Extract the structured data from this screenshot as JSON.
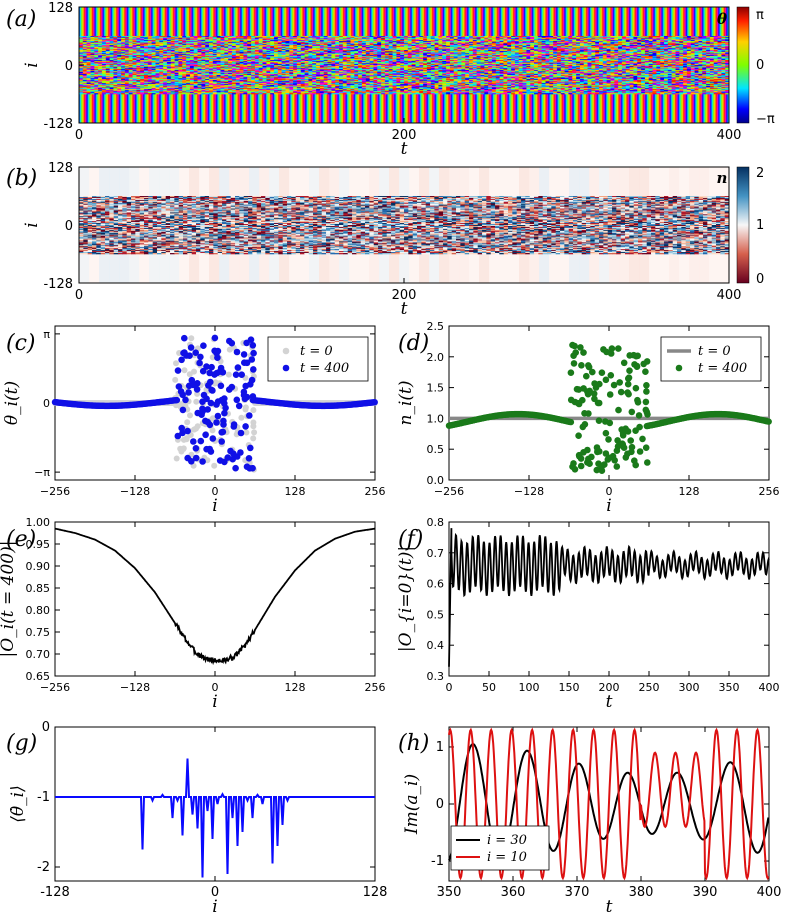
{
  "chart_data": [
    {
      "panel": "(a)",
      "type": "heatmap",
      "title": "",
      "xlabel": "t",
      "ylabel": "i",
      "x_ticks": [
        "0",
        "200",
        "400"
      ],
      "y_ticks": [
        "128",
        "0",
        "-128"
      ],
      "xlim": [
        0,
        400
      ],
      "ylim": [
        -128,
        128
      ],
      "colorbar": {
        "label": "θ",
        "ticks": [
          "π",
          "0",
          "−π"
        ],
        "range": [
          -3.1416,
          3.1416
        ]
      }
    },
    {
      "panel": "(b)",
      "type": "heatmap",
      "title": "",
      "xlabel": "t",
      "ylabel": "i",
      "x_ticks": [
        "0",
        "200",
        "400"
      ],
      "y_ticks": [
        "128",
        "0",
        "-128"
      ],
      "xlim": [
        0,
        400
      ],
      "ylim": [
        -128,
        128
      ],
      "colorbar": {
        "label": "n",
        "ticks": [
          "2",
          "1",
          "0"
        ],
        "range": [
          0,
          2
        ]
      }
    },
    {
      "panel": "(c)",
      "type": "scatter",
      "xlabel": "i",
      "ylabel": "θ_i(t)",
      "x_ticks": [
        "−256",
        "−128",
        "0",
        "128",
        "256"
      ],
      "y_ticks": [
        "π",
        "0",
        "−π"
      ],
      "xlim": [
        -256,
        256
      ],
      "ylim": [
        -3.5,
        3.5
      ],
      "legend": [
        {
          "label": "t = 0",
          "color": "#d3d3d3"
        },
        {
          "label": "t = 400",
          "color": "#1010e6"
        }
      ],
      "legend_position": "top-right"
    },
    {
      "panel": "(d)",
      "type": "scatter",
      "xlabel": "i",
      "ylabel": "n_i(t)",
      "x_ticks": [
        "−256",
        "−128",
        "0",
        "128",
        "256"
      ],
      "y_ticks": [
        "0.0",
        "0.5",
        "1.0",
        "1.5",
        "2.0",
        "2.5"
      ],
      "xlim": [
        -256,
        256
      ],
      "ylim": [
        0,
        2.5
      ],
      "legend": [
        {
          "label": "t = 0",
          "color": "#888888"
        },
        {
          "label": "t = 400",
          "color": "#1a7a1a"
        }
      ],
      "legend_position": "top-right"
    },
    {
      "panel": "(e)",
      "type": "line",
      "xlabel": "i",
      "ylabel": "|O_i(t = 400)|",
      "x_ticks": [
        "−256",
        "−128",
        "0",
        "128",
        "256"
      ],
      "y_ticks": [
        "0.65",
        "0.70",
        "0.75",
        "0.80",
        "0.85",
        "0.90",
        "0.95",
        "1.00"
      ],
      "xlim": [
        -256,
        256
      ],
      "ylim": [
        0.65,
        1.0
      ],
      "x": [
        -256,
        -224,
        -192,
        -160,
        -128,
        -96,
        -64,
        -48,
        -32,
        -16,
        0,
        16,
        32,
        48,
        64,
        96,
        128,
        160,
        192,
        224,
        256
      ],
      "y": [
        0.985,
        0.975,
        0.96,
        0.935,
        0.895,
        0.84,
        0.77,
        0.735,
        0.705,
        0.69,
        0.685,
        0.685,
        0.695,
        0.72,
        0.755,
        0.83,
        0.89,
        0.935,
        0.962,
        0.978,
        0.985
      ]
    },
    {
      "panel": "(f)",
      "type": "line",
      "xlabel": "t",
      "ylabel": "|O_{i=0}(t)|",
      "x_ticks": [
        "0",
        "50",
        "100",
        "150",
        "200",
        "250",
        "300",
        "350",
        "400"
      ],
      "y_ticks": [
        "0.3",
        "0.4",
        "0.5",
        "0.6",
        "0.7",
        "0.8"
      ],
      "xlim": [
        0,
        400
      ],
      "ylim": [
        0.3,
        0.8
      ],
      "mean_level": 0.66,
      "initial_value": 0.33,
      "peak_value": 0.78
    },
    {
      "panel": "(g)",
      "type": "line",
      "xlabel": "i",
      "ylabel": "⟨θ̇_i⟩",
      "x_ticks": [
        "-128",
        "0",
        "128"
      ],
      "y_ticks": [
        "0",
        "-1",
        "-2"
      ],
      "xlim": [
        -128,
        128
      ],
      "ylim": [
        -2.2,
        0
      ],
      "baseline": -1,
      "spikes": [
        {
          "i": -58,
          "v": -1.75
        },
        {
          "i": -50,
          "v": -1.05
        },
        {
          "i": -42,
          "v": -0.97
        },
        {
          "i": -34,
          "v": -1.3
        },
        {
          "i": -30,
          "v": -1.05
        },
        {
          "i": -26,
          "v": -1.55
        },
        {
          "i": -22,
          "v": -0.45
        },
        {
          "i": -18,
          "v": -1.25
        },
        {
          "i": -14,
          "v": -1.45
        },
        {
          "i": -10,
          "v": -2.15
        },
        {
          "i": -6,
          "v": -1.2
        },
        {
          "i": -2,
          "v": -1.6
        },
        {
          "i": 2,
          "v": -1.1
        },
        {
          "i": 6,
          "v": -0.96
        },
        {
          "i": 10,
          "v": -2.1
        },
        {
          "i": 14,
          "v": -1.3
        },
        {
          "i": 18,
          "v": -1.7
        },
        {
          "i": 22,
          "v": -1.5
        },
        {
          "i": 26,
          "v": -1.05
        },
        {
          "i": 30,
          "v": -1.3
        },
        {
          "i": 34,
          "v": -0.97
        },
        {
          "i": 38,
          "v": -1.1
        },
        {
          "i": 42,
          "v": -1.0
        },
        {
          "i": 46,
          "v": -1.95
        },
        {
          "i": 50,
          "v": -1.7
        },
        {
          "i": 54,
          "v": -1.4
        },
        {
          "i": 58,
          "v": -1.05
        }
      ]
    },
    {
      "panel": "(h)",
      "type": "line",
      "xlabel": "t",
      "ylabel": "Im(a_i)",
      "x_ticks": [
        "350",
        "360",
        "370",
        "380",
        "390",
        "400"
      ],
      "y_ticks": [
        "1",
        "0",
        "-1"
      ],
      "xlim": [
        350,
        400
      ],
      "ylim": [
        -1.35,
        1.35
      ],
      "series": [
        {
          "name": "i = 30",
          "color": "#000000",
          "period": 8.0,
          "amplitude": 1.05
        },
        {
          "name": "i = 10",
          "color": "#dd1111",
          "period": 3.2,
          "amplitude": 1.3
        }
      ],
      "legend": [
        {
          "label": "i = 30",
          "color": "#000000"
        },
        {
          "label": "i = 10",
          "color": "#dd1111"
        }
      ],
      "legend_position": "bottom-left"
    }
  ]
}
